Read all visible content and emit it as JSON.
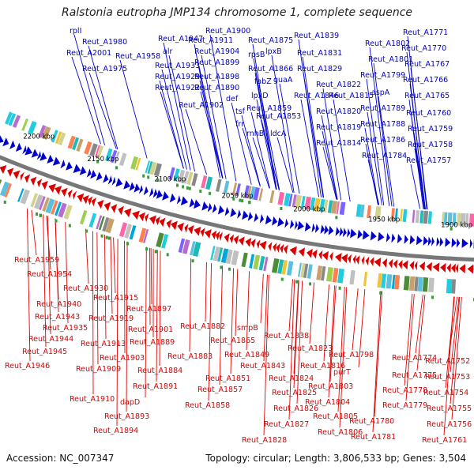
{
  "title": "Ralstonia eutropha JMP134 chromosome 1, complete sequence",
  "footer": {
    "accession": "Accession: NC_007347",
    "summary": "Topology: circular; Length: 3,806,533 bp; Genes: 3,504"
  },
  "colors": {
    "forward": "#0000cc",
    "reverse": "#dd0000",
    "backbone": "#666666"
  },
  "kbp_ticks": [
    "2200 kbp",
    "2150 kbp",
    "2100 kbp",
    "2050 kbp",
    "2000 kbp",
    "1950 kbp",
    "1900 kbp"
  ],
  "top_labels": [
    "rplI",
    "Reut_A2001",
    "Reut_A1980",
    "Reut_A1975",
    "Reut_A1958",
    "Reut_A1947",
    "alr",
    "Reut_A1933",
    "Reut_A1929",
    "Reut_A1922",
    "Reut_A1911",
    "Reut_A1904",
    "Reut_A1899",
    "Reut_A1898",
    "Reut_A1890",
    "Reut_A1902",
    "Reut_A1900",
    "def",
    "tsf",
    "frr",
    "Reut_A1875",
    "rpsB",
    "lpxB",
    "Reut_A1866",
    "fabZ",
    "lpxD",
    "guaA",
    "Reut_A1846",
    "Reut_A1859",
    "Reut_A1853",
    "rnhB",
    "ldcA",
    "Reut_A1839",
    "Reut_A1831",
    "Reut_A1829",
    "Reut_A1822",
    "Reut_A1815",
    "Reut_A1820",
    "Reut_A1819",
    "Reut_A1814",
    "Reut_A1802",
    "Reut_A1801",
    "Reut_A1799",
    "Reut_A1789",
    "Reut_A1788",
    "Reut_A1786",
    "Reut_A1784",
    "aspA",
    "Reut_A1771",
    "Reut_A1770",
    "Reut_A1767",
    "Reut_A1766",
    "Reut_A1765",
    "Reut_A1760",
    "Reut_A1759",
    "Reut_A1758",
    "Reut_A1757"
  ],
  "bottom_labels": [
    "Reut_A1959",
    "Reut_A1954",
    "Reut_A1930",
    "Reut_A1940",
    "Reut_A1943",
    "Reut_A1935",
    "Reut_A1944",
    "Reut_A1945",
    "Reut_A1946",
    "Reut_A1915",
    "Reut_A1919",
    "Reut_A1913",
    "Reut_A1909",
    "Reut_A1910",
    "Reut_A1897",
    "Reut_A1901",
    "Reut_A1889",
    "Reut_A1903",
    "Reut_A1884",
    "Reut_A1891",
    "dapD",
    "Reut_A1893",
    "Reut_A1894",
    "Reut_A1882",
    "Reut_A1883",
    "smpB",
    "Reut_A1865",
    "Reut_A1849",
    "Reut_A1843",
    "Reut_A1851",
    "Reut_A1857",
    "Reut_A1858",
    "Reut_A1838",
    "Reut_A1823",
    "Reut_A1816",
    "Reut_A1824",
    "Reut_A1825",
    "Reut_A1826",
    "Reut_A1827",
    "Reut_A1828",
    "Reut_A1798",
    "purT",
    "Reut_A1803",
    "Reut_A1804",
    "Reut_A1805",
    "Reut_A1806",
    "Reut_A1774",
    "Reut_A1775",
    "Reut_A1778",
    "Reut_A1779",
    "Reut_A1780",
    "Reut_A1781",
    "Reut_A1752",
    "Reut_A1753",
    "Reut_A1754",
    "Reut_A1755",
    "Reut_A1756",
    "Reut_A1761"
  ]
}
